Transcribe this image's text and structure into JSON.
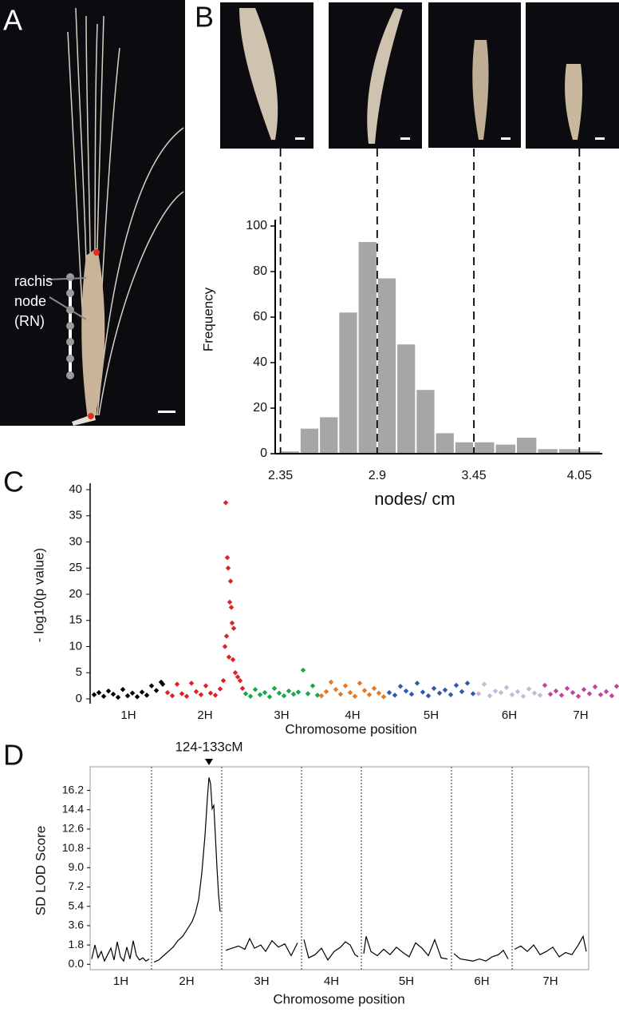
{
  "panels": [
    "A",
    "B",
    "C",
    "D"
  ],
  "photo_label": [
    "rachis",
    "node",
    "(RN)"
  ],
  "chart_data": [
    {
      "type": "histogram",
      "ylabel": "Frequency",
      "xlabel": "nodes/ cm",
      "bins": [
        2.35,
        2.46,
        2.57,
        2.68,
        2.79,
        2.9,
        3.01,
        3.12,
        3.23,
        3.34,
        3.45,
        3.57,
        3.69,
        3.81,
        3.93,
        4.05,
        4.17
      ],
      "values": [
        1,
        11,
        16,
        62,
        93,
        77,
        48,
        28,
        9,
        5,
        5,
        4,
        7,
        2,
        2,
        1
      ],
      "color": "#a6a6a6",
      "xlim": [
        2.32,
        4.18
      ],
      "xticks": [
        2.35,
        2.9,
        3.45,
        4.05
      ],
      "ylim": [
        0,
        100
      ],
      "yticks": [
        0,
        20,
        40,
        60,
        80,
        100
      ],
      "grid": false
    },
    {
      "type": "scatter",
      "ylabel": "- log10(p value)",
      "xlabel": "Chromosome position",
      "categories": [
        "1H",
        "2H",
        "3H",
        "4H",
        "5H",
        "6H",
        "7H"
      ],
      "xlim": [
        0,
        660
      ],
      "ylim": [
        0,
        40
      ],
      "yticks": [
        0,
        5,
        10,
        15,
        20,
        25,
        30,
        35,
        40
      ],
      "series": [
        {
          "color": "#000000",
          "x": [
            3,
            9,
            15,
            21,
            27,
            33,
            39,
            45,
            51,
            57,
            63,
            69,
            75,
            81,
            87,
            89
          ],
          "values": [
            0.8,
            1.2,
            0.5,
            1.5,
            0.9,
            0.3,
            1.8,
            0.6,
            1.1,
            0.4,
            1.3,
            0.7,
            2.5,
            1.6,
            3.2,
            2.8
          ]
        },
        {
          "color": "#e02027",
          "x": [
            95,
            101,
            107,
            113,
            119,
            125,
            131,
            137,
            143,
            149,
            155,
            161,
            165,
            167,
            168,
            169,
            170,
            171,
            172,
            173,
            174,
            175,
            176,
            177,
            178,
            180,
            183,
            186,
            189
          ],
          "values": [
            1.2,
            0.6,
            2.8,
            1.0,
            0.5,
            3.0,
            1.4,
            0.8,
            2.5,
            1.1,
            0.7,
            1.9,
            3.5,
            10.0,
            37.5,
            12.0,
            27.0,
            25.0,
            8.0,
            18.5,
            22.5,
            17.5,
            14.5,
            7.5,
            13.5,
            5.0,
            4.2,
            3.5,
            2.0
          ]
        },
        {
          "color": "#1aa64a",
          "x": [
            193,
            199,
            205,
            211,
            217,
            223,
            229,
            235,
            241,
            247,
            253,
            259,
            265,
            271,
            277,
            283
          ],
          "values": [
            1.0,
            0.5,
            1.8,
            0.8,
            1.2,
            0.4,
            2.0,
            1.1,
            0.6,
            1.5,
            0.9,
            1.3,
            5.5,
            1.0,
            2.5,
            0.7
          ]
        },
        {
          "color": "#e87722",
          "x": [
            288,
            294,
            300,
            306,
            312,
            318,
            324,
            330,
            336,
            342,
            348,
            354,
            360,
            366
          ],
          "values": [
            0.6,
            1.4,
            3.2,
            1.8,
            0.9,
            2.5,
            1.2,
            0.5,
            3.0,
            1.6,
            0.8,
            2.0,
            1.1,
            0.4
          ]
        },
        {
          "color": "#2e5aa8",
          "x": [
            373,
            380,
            387,
            394,
            401,
            408,
            415,
            422,
            429,
            436,
            443,
            450,
            457,
            464,
            471,
            478
          ],
          "values": [
            1.2,
            0.7,
            2.4,
            1.5,
            0.9,
            3.0,
            1.3,
            0.6,
            2.0,
            1.1,
            1.7,
            0.8,
            2.6,
            1.4,
            3.0,
            1.0
          ]
        },
        {
          "color": "#c9b8da",
          "x": [
            485,
            492,
            499,
            506,
            513,
            520,
            527,
            534,
            541,
            548,
            555,
            562
          ],
          "values": [
            1.0,
            2.8,
            0.6,
            1.5,
            1.2,
            2.2,
            0.8,
            1.4,
            0.5,
            1.9,
            1.1,
            0.7
          ]
        },
        {
          "color": "#c2449b",
          "x": [
            568,
            575,
            582,
            589,
            596,
            603,
            610,
            617,
            624,
            631,
            638,
            645,
            652,
            658
          ],
          "values": [
            2.6,
            0.9,
            1.5,
            0.7,
            2.0,
            1.2,
            0.5,
            1.8,
            1.0,
            2.3,
            0.8,
            1.4,
            0.6,
            2.4
          ]
        }
      ]
    },
    {
      "type": "line",
      "ylabel": "SD LOD Score",
      "xlabel": "Chromosome position",
      "categories": [
        "1H",
        "2H",
        "3H",
        "4H",
        "5H",
        "6H",
        "7H"
      ],
      "boundaries": [
        77,
        165,
        265,
        340,
        453,
        529
      ],
      "annotation": {
        "text": "124-133cM",
        "x": 149
      },
      "xlim": [
        0,
        625
      ],
      "ylim": [
        -0.5,
        18.4
      ],
      "yticks": [
        {
          "value": 0,
          "label": "0.0"
        },
        1.8,
        3.6,
        5.4,
        7.2,
        {
          "value": 9,
          "label": "9.0"
        },
        10.8,
        12.6,
        14.4,
        16.2
      ],
      "color": "#000000",
      "x": [
        2,
        6,
        10,
        14,
        18,
        22,
        26,
        30,
        34,
        38,
        42,
        46,
        50,
        54,
        58,
        62,
        66,
        70,
        74,
        76,
        80,
        86,
        92,
        98,
        104,
        110,
        116,
        122,
        128,
        132,
        136,
        140,
        144,
        147,
        149,
        151,
        153,
        155,
        157,
        159,
        161,
        163,
        165,
        170,
        178,
        186,
        194,
        200,
        206,
        214,
        220,
        228,
        236,
        244,
        252,
        260,
        264,
        268,
        274,
        282,
        290,
        298,
        306,
        314,
        320,
        326,
        332,
        336,
        339,
        343,
        346,
        352,
        360,
        368,
        376,
        384,
        392,
        400,
        408,
        416,
        424,
        432,
        440,
        448,
        451,
        456,
        464,
        472,
        480,
        488,
        496,
        504,
        512,
        518,
        524,
        528,
        532,
        540,
        548,
        556,
        564,
        572,
        580,
        588,
        596,
        604,
        612,
        618,
        622
      ],
      "values": [
        0.5,
        1.8,
        0.6,
        1.2,
        0.3,
        0.9,
        1.5,
        0.4,
        2.1,
        0.7,
        0.3,
        1.6,
        0.5,
        2.2,
        0.8,
        0.4,
        0.6,
        0.3,
        0.5,
        null,
        0.2,
        0.4,
        0.8,
        1.2,
        1.6,
        2.2,
        2.6,
        3.3,
        4.0,
        4.8,
        6.0,
        8.5,
        12.0,
        15.5,
        17.4,
        16.8,
        14.5,
        14.8,
        12.0,
        9.0,
        6.5,
        4.9,
        null,
        1.3,
        1.5,
        1.7,
        1.4,
        2.4,
        1.5,
        1.8,
        1.2,
        2.2,
        1.6,
        1.9,
        0.8,
        2.0,
        null,
        2.3,
        0.6,
        0.9,
        1.5,
        0.4,
        1.2,
        1.6,
        2.1,
        1.8,
        0.9,
        0.7,
        null,
        1.0,
        2.6,
        1.2,
        0.8,
        1.4,
        0.9,
        1.6,
        1.1,
        0.7,
        2.0,
        1.5,
        0.8,
        2.3,
        0.6,
        0.5,
        null,
        1.0,
        0.5,
        0.4,
        0.3,
        0.5,
        0.3,
        0.7,
        0.9,
        1.3,
        0.5,
        null,
        1.4,
        1.7,
        1.2,
        1.8,
        0.9,
        1.2,
        1.6,
        0.7,
        1.1,
        0.9,
        1.8,
        2.6,
        1.2
      ]
    }
  ]
}
